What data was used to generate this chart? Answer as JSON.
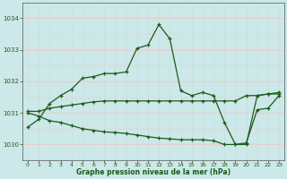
{
  "title": "Graphe pression niveau de la mer (hPa)",
  "background_color": "#cce8e8",
  "grid_color_v": "#c8e0e0",
  "grid_color_h": "#f0c8c8",
  "line_color": "#1a5c1a",
  "xlim": [
    -0.5,
    23.5
  ],
  "ylim": [
    1029.5,
    1034.5
  ],
  "yticks": [
    1030,
    1031,
    1032,
    1033,
    1034
  ],
  "xticks": [
    0,
    1,
    2,
    3,
    4,
    5,
    6,
    7,
    8,
    9,
    10,
    11,
    12,
    13,
    14,
    15,
    16,
    17,
    18,
    19,
    20,
    21,
    22,
    23
  ],
  "lines": [
    {
      "x": [
        0,
        1,
        2,
        3,
        4,
        5,
        6,
        7,
        8,
        9,
        10,
        11,
        12,
        13,
        14,
        15,
        16,
        17,
        18,
        19,
        20,
        21,
        22,
        23
      ],
      "y": [
        1030.55,
        1030.8,
        1031.3,
        1031.55,
        1031.75,
        1032.1,
        1032.15,
        1032.25,
        1032.25,
        1032.3,
        1033.05,
        1033.15,
        1033.8,
        1033.35,
        1031.7,
        1031.55,
        1031.65,
        1031.55,
        1030.7,
        1030.0,
        1030.0,
        1031.55,
        1031.6,
        1031.6
      ]
    },
    {
      "x": [
        0,
        1,
        2,
        3,
        4,
        5,
        6,
        7,
        8,
        9,
        10,
        11,
        12,
        13,
        14,
        15,
        16,
        17,
        18,
        19,
        20,
        21,
        22,
        23
      ],
      "y": [
        1031.05,
        1031.05,
        1031.15,
        1031.2,
        1031.25,
        1031.3,
        1031.35,
        1031.38,
        1031.38,
        1031.38,
        1031.38,
        1031.38,
        1031.38,
        1031.38,
        1031.38,
        1031.38,
        1031.38,
        1031.38,
        1031.38,
        1031.38,
        1031.55,
        1031.55,
        1031.6,
        1031.65
      ]
    },
    {
      "x": [
        0,
        1,
        2,
        3,
        4,
        5,
        6,
        7,
        8,
        9,
        10,
        11,
        12,
        13,
        14,
        15,
        16,
        17,
        18,
        19,
        20,
        21,
        22,
        23
      ],
      "y": [
        1031.0,
        1030.9,
        1030.75,
        1030.7,
        1030.6,
        1030.5,
        1030.45,
        1030.4,
        1030.38,
        1030.35,
        1030.3,
        1030.25,
        1030.2,
        1030.18,
        1030.15,
        1030.15,
        1030.15,
        1030.12,
        1030.0,
        1030.0,
        1030.05,
        1031.1,
        1031.15,
        1031.55
      ]
    }
  ]
}
